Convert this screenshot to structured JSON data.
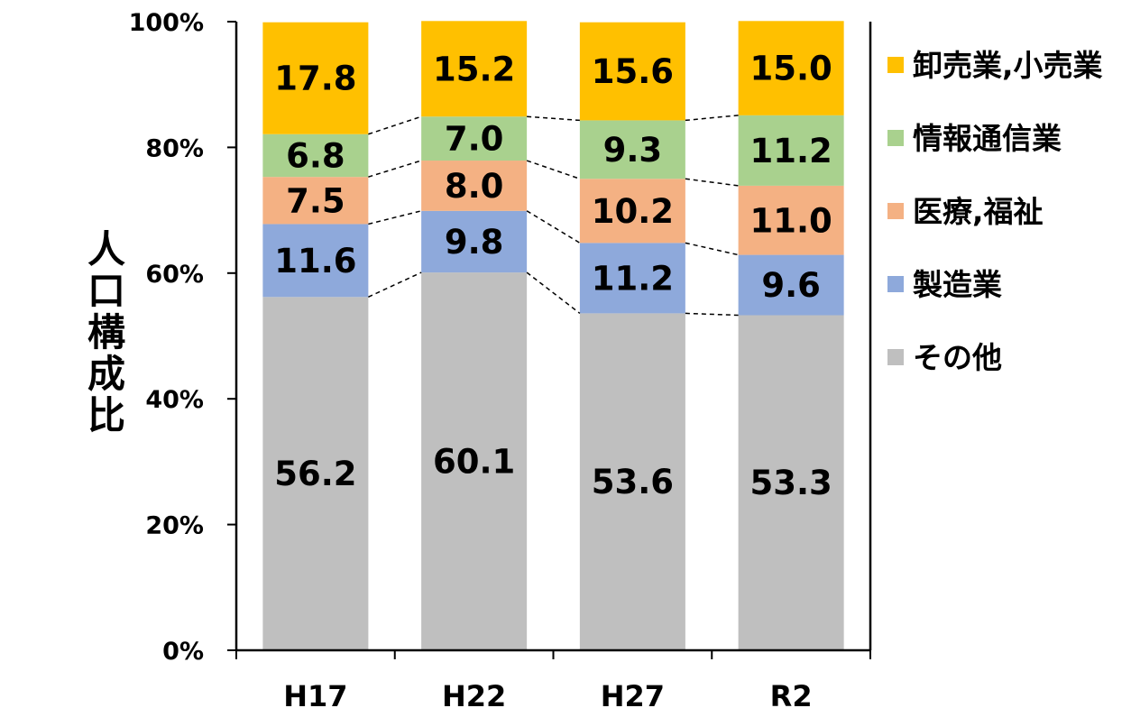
{
  "chart_data": {
    "type": "bar",
    "stacked": true,
    "percent": true,
    "categories": [
      "H17",
      "H22",
      "H27",
      "R2"
    ],
    "series": [
      {
        "name": "その他",
        "values": [
          56.2,
          60.1,
          53.6,
          53.3
        ],
        "color": "#BFBFBF"
      },
      {
        "name": "製造業",
        "values": [
          11.6,
          9.8,
          11.2,
          9.6
        ],
        "color": "#8EA9DB"
      },
      {
        "name": "医療,福祉",
        "values": [
          7.5,
          8.0,
          10.2,
          11.0
        ],
        "color": "#F4B183"
      },
      {
        "name": "情報通信業",
        "values": [
          6.8,
          7.0,
          9.3,
          11.2
        ],
        "color": "#A9D18E"
      },
      {
        "name": "卸売業,小売業",
        "values": [
          17.8,
          15.2,
          15.6,
          15.0
        ],
        "color": "#FFC000"
      }
    ],
    "ylabel": "人口構成比",
    "xlabel": "",
    "ylim": [
      0,
      100
    ],
    "yticks": [
      "0%",
      "20%",
      "40%",
      "60%",
      "80%",
      "100%"
    ],
    "grid": false,
    "legend_position": "right",
    "series_lines": true
  }
}
